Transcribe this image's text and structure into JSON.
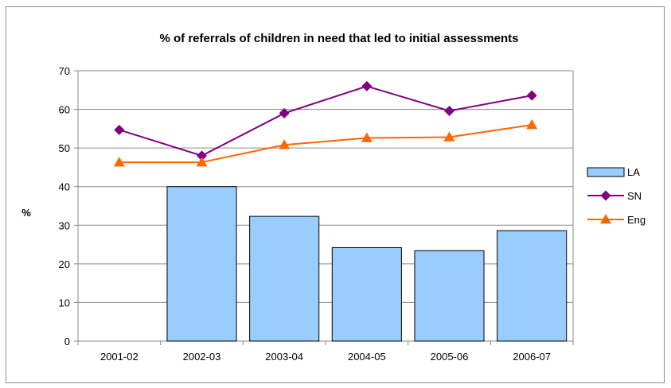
{
  "chart_data": {
    "type": "bar",
    "title": "% of referrals of children in need that led to initial assessments",
    "xlabel": "",
    "ylabel": "%",
    "categories": [
      "2001-02",
      "2002-03",
      "2003-04",
      "2004-05",
      "2005-06",
      "2006-07"
    ],
    "ylim": [
      0,
      70
    ],
    "yticks": [
      0,
      10,
      20,
      30,
      40,
      50,
      60,
      70
    ],
    "grid": true,
    "legend_position": "right",
    "series": [
      {
        "name": "LA",
        "kind": "bar",
        "color": "#99ccff",
        "values": [
          null,
          40,
          32.3,
          24.2,
          23.4,
          28.6
        ]
      },
      {
        "name": "SN",
        "kind": "line",
        "marker": "diamond",
        "color": "#800080",
        "values": [
          54.7,
          48,
          59,
          66,
          59.6,
          63.6
        ]
      },
      {
        "name": "Eng",
        "kind": "line",
        "marker": "triangle",
        "color": "#ff6600",
        "values": [
          46.3,
          46.3,
          50.8,
          52.6,
          52.8,
          56
        ]
      }
    ]
  }
}
